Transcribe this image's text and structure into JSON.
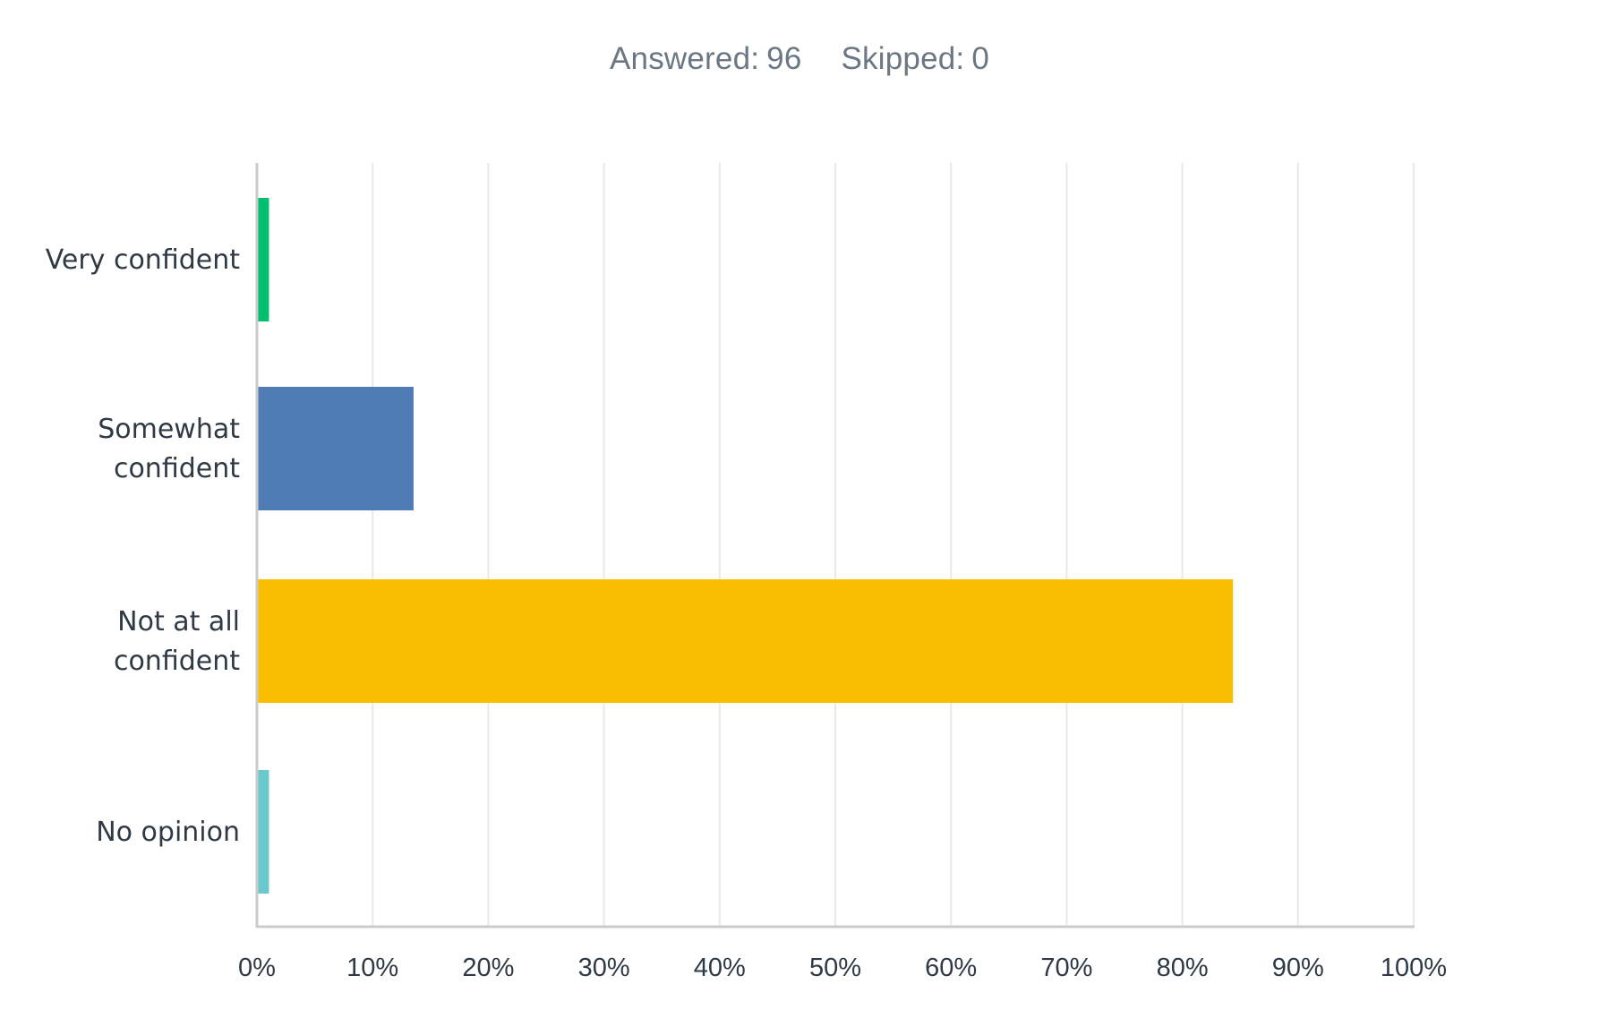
{
  "summary": {
    "answered_label": "Answered:",
    "answered_value": "96",
    "skipped_label": "Skipped:",
    "skipped_value": "0"
  },
  "chart_data": {
    "type": "bar",
    "orientation": "horizontal",
    "categories": [
      [
        "Very confident"
      ],
      [
        "Somewhat",
        "confident"
      ],
      [
        "Not at all",
        "confident"
      ],
      [
        "No opinion"
      ]
    ],
    "values": [
      1.04,
      13.54,
      84.38,
      1.04
    ],
    "colors": [
      "#00bf6f",
      "#507cb6",
      "#f9be00",
      "#6bc8cd"
    ],
    "xlim": [
      0,
      100
    ],
    "xticks": [
      "0%",
      "10%",
      "20%",
      "30%",
      "40%",
      "50%",
      "60%",
      "70%",
      "80%",
      "90%",
      "100%"
    ],
    "grid": true,
    "grid_color": "#e9e9e9",
    "axis_color": "#c9cbcc"
  }
}
